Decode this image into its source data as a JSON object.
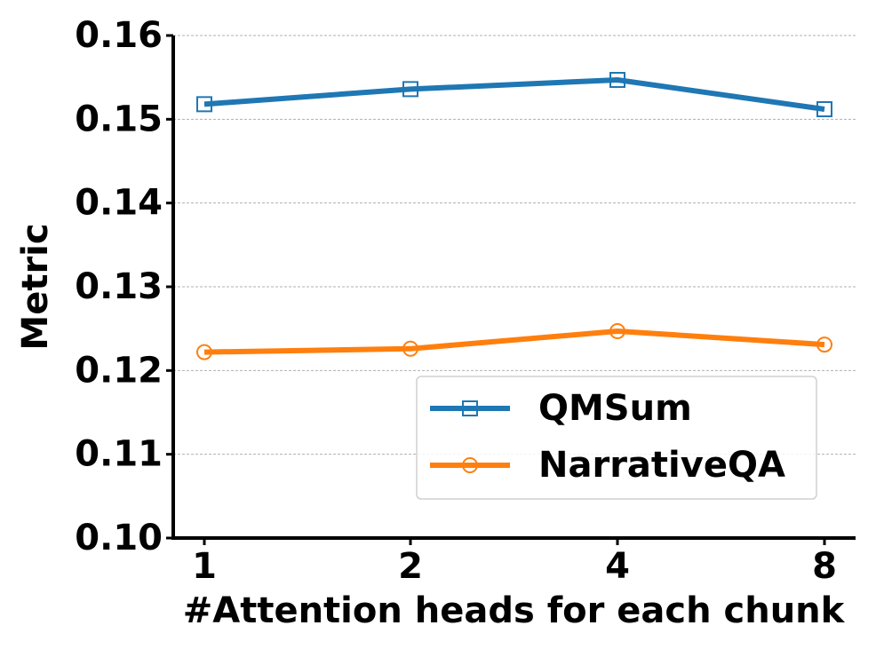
{
  "chart_data": {
    "type": "line",
    "x_label": "#Attention heads for each chunk",
    "y_label": "Metric",
    "categories": [
      "1",
      "2",
      "4",
      "8"
    ],
    "series": [
      {
        "name": "QMSum",
        "color": "#1f77b4",
        "marker": "square",
        "values": [
          0.1518,
          0.1536,
          0.1547,
          0.1512
        ]
      },
      {
        "name": "NarrativeQA",
        "color": "#ff7f0e",
        "marker": "circle",
        "values": [
          0.1222,
          0.1226,
          0.1247,
          0.1231
        ]
      }
    ],
    "ylim": [
      0.1,
      0.16
    ],
    "yticks": [
      {
        "value": 0.1,
        "label": "0.10"
      },
      0.11,
      0.12,
      0.13,
      0.14,
      0.15,
      0.16
    ],
    "grid": true,
    "legend": "lower right"
  }
}
